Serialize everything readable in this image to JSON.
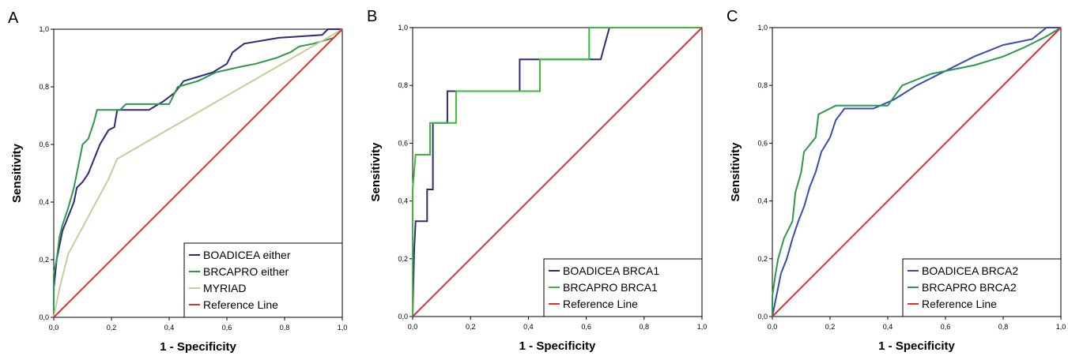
{
  "chart_data": [
    {
      "type": "line",
      "title": "A",
      "x_label": "1 - Specificity",
      "y_label": "Sensitivity",
      "xlim": [
        0,
        1
      ],
      "ylim": [
        0,
        1
      ],
      "xticks": [
        {
          "value": 0,
          "label": "0,0"
        },
        {
          "value": 0.2,
          "label": "0,2"
        },
        {
          "value": 0.4,
          "label": "0,4"
        },
        {
          "value": 0.6,
          "label": "0,6"
        },
        {
          "value": 0.8,
          "label": "0,8"
        },
        {
          "value": 1,
          "label": "1,0"
        }
      ],
      "yticks": [
        {
          "value": 0,
          "label": "0,0"
        },
        {
          "value": 0.2,
          "label": "0,2"
        },
        {
          "value": 0.4,
          "label": "0,4"
        },
        {
          "value": 0.6,
          "label": "0,6"
        },
        {
          "value": 0.8,
          "label": "0,8"
        },
        {
          "value": 1,
          "label": "1,0"
        }
      ],
      "legend": "lower right",
      "series": [
        {
          "name": "BOADICEA either",
          "color": "#2b2b7a",
          "x": [
            0,
            0,
            0.01,
            0.02,
            0.03,
            0.05,
            0.07,
            0.08,
            0.1,
            0.12,
            0.14,
            0.16,
            0.19,
            0.21,
            0.22,
            0.33,
            0.38,
            0.42,
            0.45,
            0.55,
            0.6,
            0.62,
            0.66,
            0.78,
            0.93,
            0.95,
            1
          ],
          "values": [
            0,
            0.1,
            0.2,
            0.25,
            0.3,
            0.35,
            0.4,
            0.45,
            0.47,
            0.5,
            0.55,
            0.6,
            0.65,
            0.66,
            0.72,
            0.72,
            0.75,
            0.78,
            0.82,
            0.85,
            0.88,
            0.92,
            0.95,
            0.97,
            0.98,
            1,
            1
          ]
        },
        {
          "name": "BRCAPRO either",
          "color": "#2a9a4a",
          "x": [
            0,
            0,
            0.01,
            0.02,
            0.03,
            0.05,
            0.07,
            0.09,
            0.1,
            0.12,
            0.14,
            0.15,
            0.23,
            0.25,
            0.4,
            0.43,
            0.5,
            0.56,
            0.65,
            0.7,
            0.77,
            0.82,
            0.85,
            0.9,
            0.97,
            1
          ],
          "values": [
            0,
            0.15,
            0.2,
            0.28,
            0.32,
            0.38,
            0.45,
            0.55,
            0.6,
            0.62,
            0.68,
            0.72,
            0.72,
            0.74,
            0.74,
            0.8,
            0.82,
            0.85,
            0.87,
            0.88,
            0.9,
            0.92,
            0.94,
            0.95,
            0.97,
            1
          ]
        },
        {
          "name": "MYRIAD",
          "color": "#c8cc9a",
          "x": [
            0,
            0.02,
            0.04,
            0.05,
            0.19,
            0.22,
            1
          ],
          "values": [
            0,
            0.1,
            0.18,
            0.22,
            0.48,
            0.55,
            1
          ]
        },
        {
          "name": "Reference Line",
          "color": "#e03030",
          "x": [
            0,
            1
          ],
          "values": [
            0,
            1
          ]
        }
      ]
    },
    {
      "type": "line",
      "title": "B",
      "x_label": "1 - Specificity",
      "y_label": "Sensitivity",
      "xlim": [
        0,
        1
      ],
      "ylim": [
        0,
        1
      ],
      "xticks": [
        {
          "value": 0,
          "label": "0,0"
        },
        {
          "value": 0.2,
          "label": "0,2"
        },
        {
          "value": 0.4,
          "label": "0,4"
        },
        {
          "value": 0.6,
          "label": "0,6"
        },
        {
          "value": 0.8,
          "label": "0,8"
        },
        {
          "value": 1,
          "label": "1,0"
        }
      ],
      "yticks": [
        {
          "value": 0,
          "label": "0,0"
        },
        {
          "value": 0.2,
          "label": "0,2"
        },
        {
          "value": 0.4,
          "label": "0,4"
        },
        {
          "value": 0.6,
          "label": "0,6"
        },
        {
          "value": 0.8,
          "label": "0,8"
        },
        {
          "value": 1,
          "label": "1,0"
        }
      ],
      "legend": "lower right",
      "series": [
        {
          "name": "BOADICEA BRCA1",
          "color": "#2b2b7a",
          "x": [
            0,
            0.005,
            0.01,
            0.05,
            0.05,
            0.07,
            0.07,
            0.12,
            0.12,
            0.37,
            0.37,
            0.65,
            0.68,
            1
          ],
          "values": [
            0,
            0.22,
            0.33,
            0.33,
            0.44,
            0.44,
            0.67,
            0.67,
            0.78,
            0.78,
            0.89,
            0.89,
            1,
            1
          ]
        },
        {
          "name": "BRCAPRO BRCA1",
          "color": "#3cb83c",
          "x": [
            0,
            0,
            0.01,
            0.06,
            0.06,
            0.15,
            0.15,
            0.44,
            0.44,
            0.61,
            0.61,
            1
          ],
          "values": [
            0,
            0.44,
            0.56,
            0.56,
            0.67,
            0.67,
            0.78,
            0.78,
            0.89,
            0.89,
            1,
            1
          ]
        },
        {
          "name": "Reference Line",
          "color": "#e03030",
          "x": [
            0,
            1
          ],
          "values": [
            0,
            1
          ]
        }
      ]
    },
    {
      "type": "line",
      "title": "C",
      "x_label": "1 - Specificity",
      "y_label": "Sensitivity",
      "xlim": [
        0,
        1
      ],
      "ylim": [
        0,
        1
      ],
      "xticks": [
        {
          "value": 0,
          "label": "0,0"
        },
        {
          "value": 0.2,
          "label": "0,2"
        },
        {
          "value": 0.4,
          "label": "0,4"
        },
        {
          "value": 0.6,
          "label": "0,6"
        },
        {
          "value": 0.8,
          "label": "0,8"
        },
        {
          "value": 1,
          "label": "1,0"
        }
      ],
      "yticks": [
        {
          "value": 0,
          "label": "0,0"
        },
        {
          "value": 0.2,
          "label": "0,2"
        },
        {
          "value": 0.4,
          "label": "0,4"
        },
        {
          "value": 0.6,
          "label": "0,6"
        },
        {
          "value": 0.8,
          "label": "0,8"
        },
        {
          "value": 1,
          "label": "1,0"
        }
      ],
      "legend": "lower right",
      "series": [
        {
          "name": "BOADICEA BRCA2",
          "color": "#3a4ab8",
          "x": [
            0,
            0.01,
            0.02,
            0.03,
            0.05,
            0.07,
            0.09,
            0.11,
            0.13,
            0.15,
            0.17,
            0.2,
            0.22,
            0.25,
            0.35,
            0.42,
            0.5,
            0.6,
            0.7,
            0.8,
            0.9,
            0.95,
            1
          ],
          "values": [
            0,
            0.05,
            0.1,
            0.15,
            0.2,
            0.27,
            0.33,
            0.38,
            0.45,
            0.5,
            0.57,
            0.62,
            0.68,
            0.72,
            0.72,
            0.75,
            0.8,
            0.85,
            0.9,
            0.94,
            0.96,
            1,
            1
          ]
        },
        {
          "name": "BRCAPRO BRCA2",
          "color": "#2a9a4a",
          "x": [
            0,
            0,
            0.01,
            0.02,
            0.04,
            0.07,
            0.08,
            0.1,
            0.11,
            0.15,
            0.16,
            0.18,
            0.22,
            0.4,
            0.45,
            0.55,
            0.7,
            0.8,
            0.87,
            0.95,
            1
          ],
          "values": [
            0,
            0.07,
            0.14,
            0.2,
            0.27,
            0.33,
            0.43,
            0.5,
            0.57,
            0.62,
            0.7,
            0.71,
            0.73,
            0.73,
            0.8,
            0.84,
            0.87,
            0.9,
            0.93,
            0.97,
            1
          ]
        },
        {
          "name": "Reference Line",
          "color": "#e03030",
          "x": [
            0,
            1
          ],
          "values": [
            0,
            1
          ]
        }
      ]
    }
  ]
}
